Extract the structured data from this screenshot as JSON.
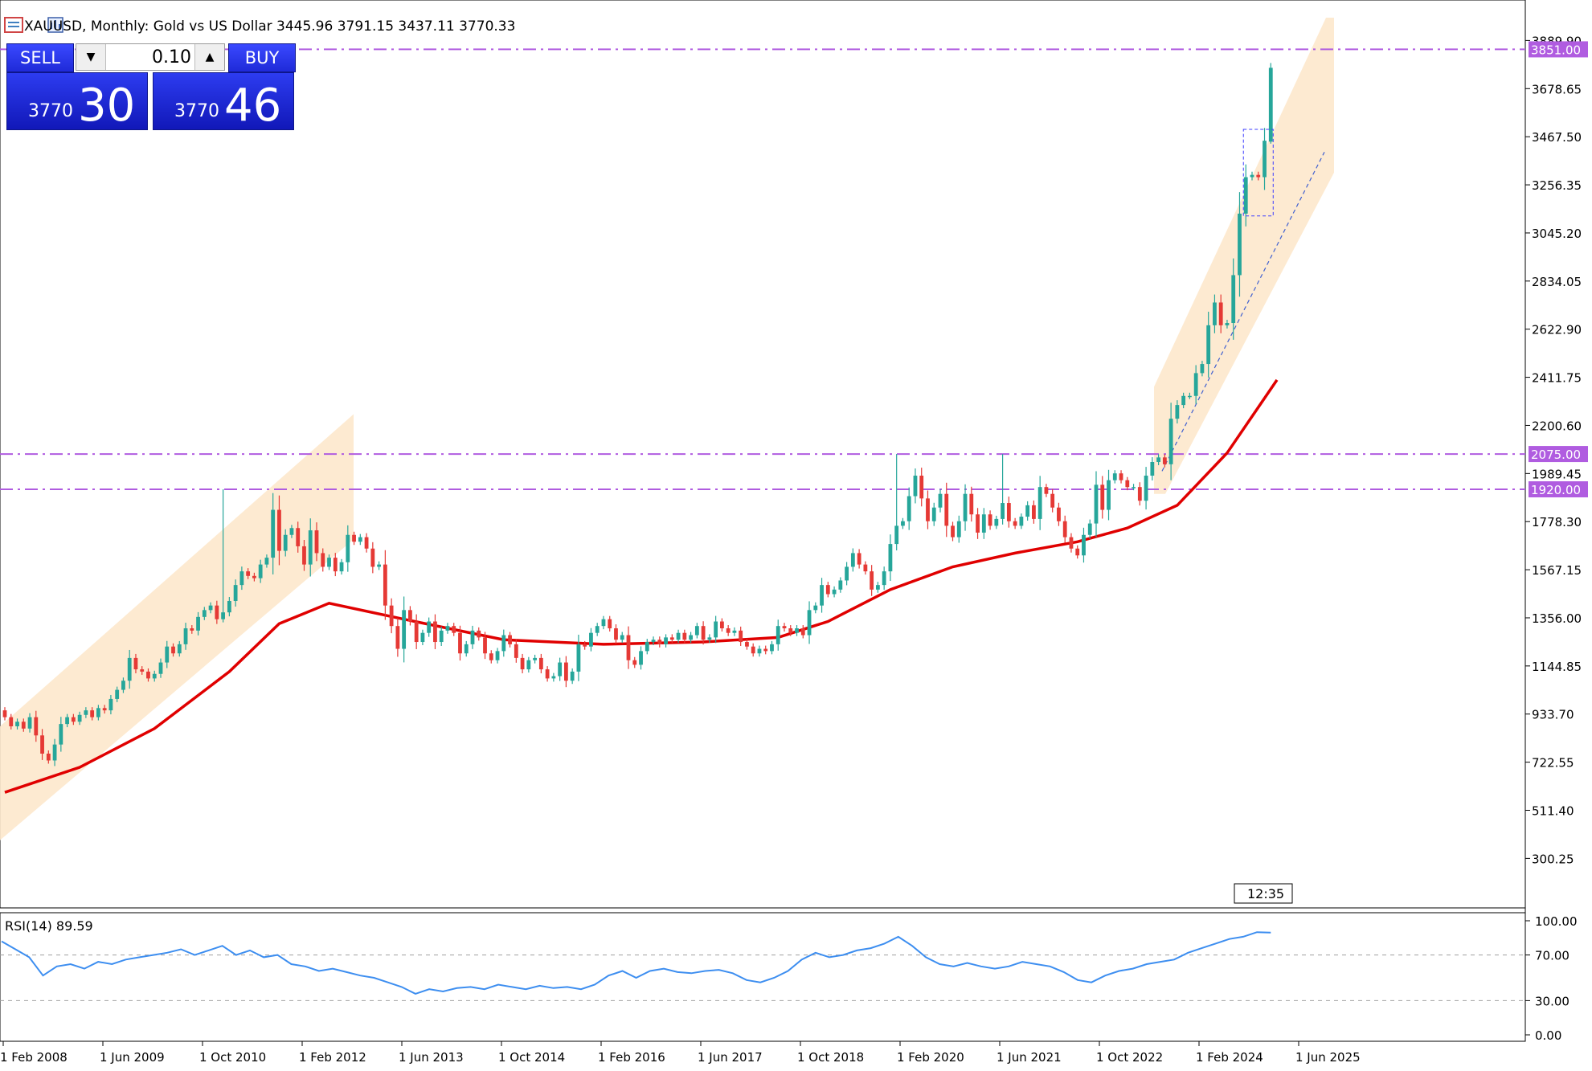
{
  "header": {
    "text": "XAUUSD, Monthly: Gold vs US Dollar  3445.96 3791.15 3437.11 3770.33"
  },
  "trade_panel": {
    "sell_label": "SELL",
    "buy_label": "BUY",
    "lot_value": "0.10",
    "sell_price_small": "3770",
    "sell_price_big": "30",
    "buy_price_small": "3770",
    "buy_price_big": "46"
  },
  "icons": {
    "chart_menu_icon": "chart-menu-icon",
    "lot_down_icon": "arrow-down",
    "lot_up_icon": "arrow-up"
  },
  "colors": {
    "candle_up": "#26a69a",
    "candle_down": "#e53935",
    "ma_line": "#e00000",
    "channel_fill": "#fde8cc",
    "level_line": "#b05ce0",
    "rsi_line": "#3d8ef0"
  },
  "time_badge": "12:35",
  "chart_data": [
    {
      "type": "candlestick",
      "title": "XAUUSD, Monthly: Gold vs US Dollar",
      "ohlc_last": {
        "open": 3445.96,
        "high": 3791.15,
        "low": 3437.11,
        "close": 3770.33
      },
      "x_tick_labels": [
        "1 Feb 2008",
        "1 Jun 2009",
        "1 Oct 2010",
        "1 Feb 2012",
        "1 Jun 2013",
        "1 Oct 2014",
        "1 Feb 2016",
        "1 Jun 2017",
        "1 Oct 2018",
        "1 Feb 2020",
        "1 Jun 2021",
        "1 Oct 2022",
        "1 Feb 2024",
        "1 Jun 2025"
      ],
      "y_tick_labels": [
        "3889.90",
        "3678.65",
        "3467.50",
        "3256.35",
        "3045.20",
        "2834.05",
        "2622.90",
        "2411.75",
        "2200.60",
        "1989.45",
        "1778.30",
        "1567.15",
        "1356.00",
        "1144.85",
        "933.70",
        "722.55",
        "511.40",
        "300.25"
      ],
      "ylim": [
        90,
        3990
      ],
      "closes": [
        920,
        880,
        900,
        870,
        920,
        840,
        760,
        730,
        800,
        890,
        920,
        900,
        930,
        950,
        920,
        960,
        950,
        1000,
        1040,
        1080,
        1180,
        1130,
        1120,
        1090,
        1110,
        1160,
        1230,
        1200,
        1240,
        1310,
        1300,
        1360,
        1390,
        1410,
        1350,
        1380,
        1430,
        1500,
        1560,
        1540,
        1530,
        1590,
        1620,
        1830,
        1650,
        1720,
        1750,
        1670,
        1590,
        1740,
        1640,
        1580,
        1620,
        1560,
        1600,
        1720,
        1690,
        1710,
        1660,
        1580,
        1590,
        1410,
        1320,
        1220,
        1390,
        1340,
        1250,
        1290,
        1340,
        1250,
        1300,
        1320,
        1290,
        1200,
        1240,
        1300,
        1270,
        1200,
        1170,
        1210,
        1280,
        1240,
        1180,
        1130,
        1170,
        1180,
        1130,
        1090,
        1100,
        1160,
        1080,
        1120,
        1240,
        1230,
        1290,
        1320,
        1350,
        1310,
        1260,
        1280,
        1170,
        1150,
        1210,
        1250,
        1260,
        1240,
        1270,
        1260,
        1290,
        1260,
        1280,
        1320,
        1260,
        1270,
        1340,
        1310,
        1290,
        1300,
        1250,
        1230,
        1200,
        1220,
        1210,
        1240,
        1320,
        1310,
        1290,
        1310,
        1280,
        1390,
        1410,
        1500,
        1460,
        1480,
        1520,
        1580,
        1640,
        1590,
        1560,
        1480,
        1500,
        1560,
        1680,
        1760,
        1780,
        1890,
        1980,
        1880,
        1780,
        1840,
        1900,
        1760,
        1710,
        1780,
        1900,
        1810,
        1730,
        1810,
        1760,
        1790,
        1860,
        1780,
        1760,
        1800,
        1850,
        1790,
        1930,
        1900,
        1840,
        1780,
        1710,
        1660,
        1630,
        1720,
        1770,
        1940,
        1830,
        1960,
        1990,
        1960,
        1930,
        1930,
        1870,
        1980,
        2040,
        2060,
        2030,
        2230,
        2290,
        2330,
        2330,
        2430,
        2470,
        2640,
        2740,
        2640,
        2650,
        2860,
        3130,
        3290,
        3300,
        3290,
        3450,
        3770
      ],
      "highs_notable": [
        1920,
        2075,
        3791.15
      ],
      "ma_points": [
        [
          0,
          590
        ],
        [
          12,
          700
        ],
        [
          24,
          870
        ],
        [
          36,
          1120
        ],
        [
          44,
          1330
        ],
        [
          52,
          1420
        ],
        [
          64,
          1350
        ],
        [
          80,
          1260
        ],
        [
          96,
          1240
        ],
        [
          112,
          1250
        ],
        [
          124,
          1270
        ],
        [
          132,
          1340
        ],
        [
          142,
          1480
        ],
        [
          152,
          1580
        ],
        [
          162,
          1640
        ],
        [
          172,
          1690
        ],
        [
          180,
          1750
        ],
        [
          188,
          1850
        ],
        [
          196,
          2080
        ],
        [
          204,
          2400
        ]
      ],
      "horizontal_levels": [
        "3851.00",
        "2075.00",
        "1920.00"
      ],
      "channels": "two rising channels (2008-2012 and 2023-2025)"
    },
    {
      "type": "line",
      "title": "RSI(14) 89.59",
      "indicator": "RSI(14)",
      "last_value": 89.59,
      "y_tick_labels": [
        "100.00",
        "70.00",
        "30.00",
        "0.00"
      ],
      "ylim": [
        0,
        100
      ],
      "reference_levels": [
        70,
        30
      ],
      "values": [
        82,
        75,
        68,
        52,
        60,
        62,
        58,
        64,
        62,
        66,
        68,
        70,
        72,
        75,
        70,
        74,
        78,
        70,
        74,
        68,
        70,
        62,
        60,
        56,
        58,
        55,
        52,
        50,
        46,
        42,
        36,
        40,
        38,
        41,
        42,
        40,
        44,
        42,
        40,
        43,
        41,
        42,
        40,
        44,
        52,
        56,
        50,
        56,
        58,
        55,
        54,
        56,
        57,
        54,
        48,
        46,
        50,
        56,
        66,
        72,
        68,
        70,
        74,
        76,
        80,
        86,
        78,
        68,
        62,
        60,
        63,
        60,
        58,
        60,
        64,
        62,
        60,
        55,
        48,
        46,
        52,
        56,
        58,
        62,
        64,
        66,
        72,
        76,
        80,
        84,
        86,
        90,
        89.59
      ]
    }
  ]
}
